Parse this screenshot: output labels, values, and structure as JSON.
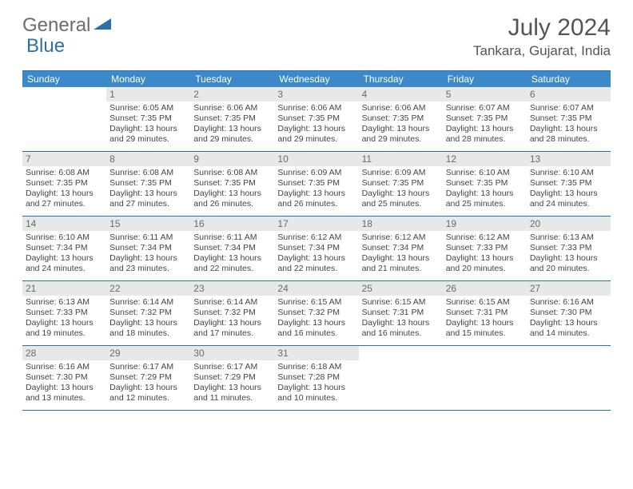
{
  "logo": {
    "text1": "General",
    "text2": "Blue"
  },
  "title": "July 2024",
  "location": "Tankara, Gujarat, India",
  "colors": {
    "header_bg": "#3b89c9",
    "header_text": "#ffffff",
    "border": "#2f6fa8",
    "daynum_bg": "#e8e8e8",
    "daynum_text": "#6b6b6b",
    "body_text": "#444444",
    "logo_gray": "#6b6b6b",
    "logo_blue": "#2f6fa8"
  },
  "day_names": [
    "Sunday",
    "Monday",
    "Tuesday",
    "Wednesday",
    "Thursday",
    "Friday",
    "Saturday"
  ],
  "weeks": [
    [
      null,
      {
        "n": "1",
        "sr": "6:05 AM",
        "ss": "7:35 PM",
        "dl": "13 hours and 29 minutes."
      },
      {
        "n": "2",
        "sr": "6:06 AM",
        "ss": "7:35 PM",
        "dl": "13 hours and 29 minutes."
      },
      {
        "n": "3",
        "sr": "6:06 AM",
        "ss": "7:35 PM",
        "dl": "13 hours and 29 minutes."
      },
      {
        "n": "4",
        "sr": "6:06 AM",
        "ss": "7:35 PM",
        "dl": "13 hours and 29 minutes."
      },
      {
        "n": "5",
        "sr": "6:07 AM",
        "ss": "7:35 PM",
        "dl": "13 hours and 28 minutes."
      },
      {
        "n": "6",
        "sr": "6:07 AM",
        "ss": "7:35 PM",
        "dl": "13 hours and 28 minutes."
      }
    ],
    [
      {
        "n": "7",
        "sr": "6:08 AM",
        "ss": "7:35 PM",
        "dl": "13 hours and 27 minutes."
      },
      {
        "n": "8",
        "sr": "6:08 AM",
        "ss": "7:35 PM",
        "dl": "13 hours and 27 minutes."
      },
      {
        "n": "9",
        "sr": "6:08 AM",
        "ss": "7:35 PM",
        "dl": "13 hours and 26 minutes."
      },
      {
        "n": "10",
        "sr": "6:09 AM",
        "ss": "7:35 PM",
        "dl": "13 hours and 26 minutes."
      },
      {
        "n": "11",
        "sr": "6:09 AM",
        "ss": "7:35 PM",
        "dl": "13 hours and 25 minutes."
      },
      {
        "n": "12",
        "sr": "6:10 AM",
        "ss": "7:35 PM",
        "dl": "13 hours and 25 minutes."
      },
      {
        "n": "13",
        "sr": "6:10 AM",
        "ss": "7:35 PM",
        "dl": "13 hours and 24 minutes."
      }
    ],
    [
      {
        "n": "14",
        "sr": "6:10 AM",
        "ss": "7:34 PM",
        "dl": "13 hours and 24 minutes."
      },
      {
        "n": "15",
        "sr": "6:11 AM",
        "ss": "7:34 PM",
        "dl": "13 hours and 23 minutes."
      },
      {
        "n": "16",
        "sr": "6:11 AM",
        "ss": "7:34 PM",
        "dl": "13 hours and 22 minutes."
      },
      {
        "n": "17",
        "sr": "6:12 AM",
        "ss": "7:34 PM",
        "dl": "13 hours and 22 minutes."
      },
      {
        "n": "18",
        "sr": "6:12 AM",
        "ss": "7:34 PM",
        "dl": "13 hours and 21 minutes."
      },
      {
        "n": "19",
        "sr": "6:12 AM",
        "ss": "7:33 PM",
        "dl": "13 hours and 20 minutes."
      },
      {
        "n": "20",
        "sr": "6:13 AM",
        "ss": "7:33 PM",
        "dl": "13 hours and 20 minutes."
      }
    ],
    [
      {
        "n": "21",
        "sr": "6:13 AM",
        "ss": "7:33 PM",
        "dl": "13 hours and 19 minutes."
      },
      {
        "n": "22",
        "sr": "6:14 AM",
        "ss": "7:32 PM",
        "dl": "13 hours and 18 minutes."
      },
      {
        "n": "23",
        "sr": "6:14 AM",
        "ss": "7:32 PM",
        "dl": "13 hours and 17 minutes."
      },
      {
        "n": "24",
        "sr": "6:15 AM",
        "ss": "7:32 PM",
        "dl": "13 hours and 16 minutes."
      },
      {
        "n": "25",
        "sr": "6:15 AM",
        "ss": "7:31 PM",
        "dl": "13 hours and 16 minutes."
      },
      {
        "n": "26",
        "sr": "6:15 AM",
        "ss": "7:31 PM",
        "dl": "13 hours and 15 minutes."
      },
      {
        "n": "27",
        "sr": "6:16 AM",
        "ss": "7:30 PM",
        "dl": "13 hours and 14 minutes."
      }
    ],
    [
      {
        "n": "28",
        "sr": "6:16 AM",
        "ss": "7:30 PM",
        "dl": "13 hours and 13 minutes."
      },
      {
        "n": "29",
        "sr": "6:17 AM",
        "ss": "7:29 PM",
        "dl": "13 hours and 12 minutes."
      },
      {
        "n": "30",
        "sr": "6:17 AM",
        "ss": "7:29 PM",
        "dl": "13 hours and 11 minutes."
      },
      {
        "n": "31",
        "sr": "6:18 AM",
        "ss": "7:28 PM",
        "dl": "13 hours and 10 minutes."
      },
      null,
      null,
      null
    ]
  ],
  "labels": {
    "sunrise": "Sunrise:",
    "sunset": "Sunset:",
    "daylight": "Daylight:"
  }
}
